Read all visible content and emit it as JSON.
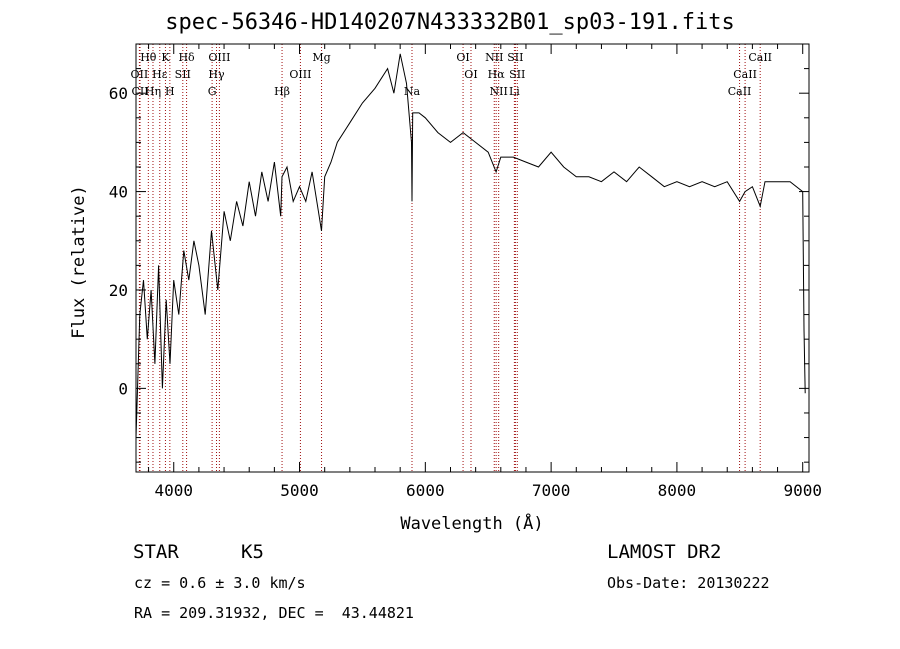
{
  "title": "spec-56346-HD140207N433332B01_sp03-191.fits",
  "info": {
    "class_label": "STAR",
    "subclass": "K5",
    "cz": "cz = 0.6 ± 3.0 km/s",
    "radec": "RA = 209.31932, DEC =  43.44821",
    "survey": "LAMOST DR2",
    "obs_date": "Obs-Date: 20130222"
  },
  "chart_data": {
    "type": "line",
    "title": "spec-56346-HD140207N433332B01_sp03-191.fits",
    "xlabel": "Wavelength (Å)",
    "ylabel": "Flux (relative)",
    "xlim": [
      3700,
      9050
    ],
    "ylim": [
      -17,
      70
    ],
    "xticks": [
      4000,
      5000,
      6000,
      7000,
      8000,
      9000
    ],
    "yticks": [
      0,
      20,
      40,
      60
    ],
    "series": [
      {
        "x": [
          3700,
          3730,
          3760,
          3790,
          3820,
          3850,
          3880,
          3910,
          3940,
          3970,
          4000,
          4040,
          4080,
          4120,
          4160,
          4200,
          4250,
          4300,
          4350,
          4400,
          4450,
          4500,
          4550,
          4600,
          4650,
          4700,
          4750,
          4800,
          4850,
          4861,
          4900,
          4950,
          5000,
          5050,
          5100,
          5150,
          5175,
          5200,
          5250,
          5300,
          5400,
          5500,
          5600,
          5700,
          5750,
          5800,
          5850,
          5890,
          5894,
          5900,
          5950,
          6000,
          6100,
          6200,
          6300,
          6400,
          6500,
          6563,
          6600,
          6700,
          6800,
          6900,
          7000,
          7100,
          7200,
          7300,
          7400,
          7500,
          7600,
          7700,
          7800,
          7900,
          8000,
          8100,
          8200,
          8300,
          8400,
          8498,
          8542,
          8600,
          8662,
          8700,
          8800,
          8900,
          9000,
          9010,
          9020
        ],
        "y": [
          -10,
          15,
          22,
          10,
          20,
          5,
          25,
          0,
          18,
          5,
          22,
          15,
          28,
          22,
          30,
          25,
          15,
          32,
          20,
          36,
          30,
          38,
          33,
          42,
          35,
          44,
          38,
          46,
          35,
          43,
          45,
          38,
          41,
          38,
          44,
          36,
          32,
          43,
          46,
          50,
          54,
          58,
          61,
          65,
          60,
          68,
          62,
          50,
          38,
          56,
          56,
          55,
          52,
          50,
          52,
          50,
          48,
          44,
          47,
          47,
          46,
          45,
          48,
          45,
          43,
          43,
          42,
          44,
          42,
          45,
          43,
          41,
          42,
          41,
          42,
          41,
          42,
          38,
          40,
          41,
          37,
          42,
          42,
          42,
          40,
          12,
          -1
        ]
      }
    ],
    "lines": [
      {
        "label": "Hθ",
        "x": 3798,
        "row": 0
      },
      {
        "label": "OII",
        "x": 3727,
        "row": 1
      },
      {
        "label": "CII",
        "x": 3732,
        "row": 2
      },
      {
        "label": "Hη",
        "x": 3835,
        "row": 2
      },
      {
        "label": "Hε",
        "x": 3889,
        "row": 1
      },
      {
        "label": "K",
        "x": 3934,
        "row": 0
      },
      {
        "label": "SII",
        "x": 4072,
        "row": 1
      },
      {
        "label": "H",
        "x": 3969,
        "row": 2
      },
      {
        "label": "Hδ",
        "x": 4102,
        "row": 0
      },
      {
        "label": "OIII",
        "x": 4363,
        "row": 0
      },
      {
        "label": "Hγ",
        "x": 4340,
        "row": 1
      },
      {
        "label": "G",
        "x": 4305,
        "row": 2
      },
      {
        "label": "OIII",
        "x": 5007,
        "row": 1
      },
      {
        "label": "Hβ",
        "x": 4861,
        "row": 2
      },
      {
        "label": "Mg",
        "x": 5175,
        "row": 0
      },
      {
        "label": "Na",
        "x": 5894,
        "row": 2
      },
      {
        "label": "OI",
        "x": 6300,
        "row": 0
      },
      {
        "label": "OI",
        "x": 6363,
        "row": 1
      },
      {
        "label": "NII",
        "x": 6548,
        "row": 0
      },
      {
        "label": "SII",
        "x": 6716,
        "row": 0
      },
      {
        "label": "Hα",
        "x": 6563,
        "row": 1
      },
      {
        "label": "SII",
        "x": 6731,
        "row": 1
      },
      {
        "label": "NII",
        "x": 6583,
        "row": 2
      },
      {
        "label": "Li",
        "x": 6708,
        "row": 2
      },
      {
        "label": "CaII",
        "x": 8662,
        "row": 0
      },
      {
        "label": "CaII",
        "x": 8542,
        "row": 1
      },
      {
        "label": "CaII",
        "x": 8498,
        "row": 2
      }
    ]
  }
}
